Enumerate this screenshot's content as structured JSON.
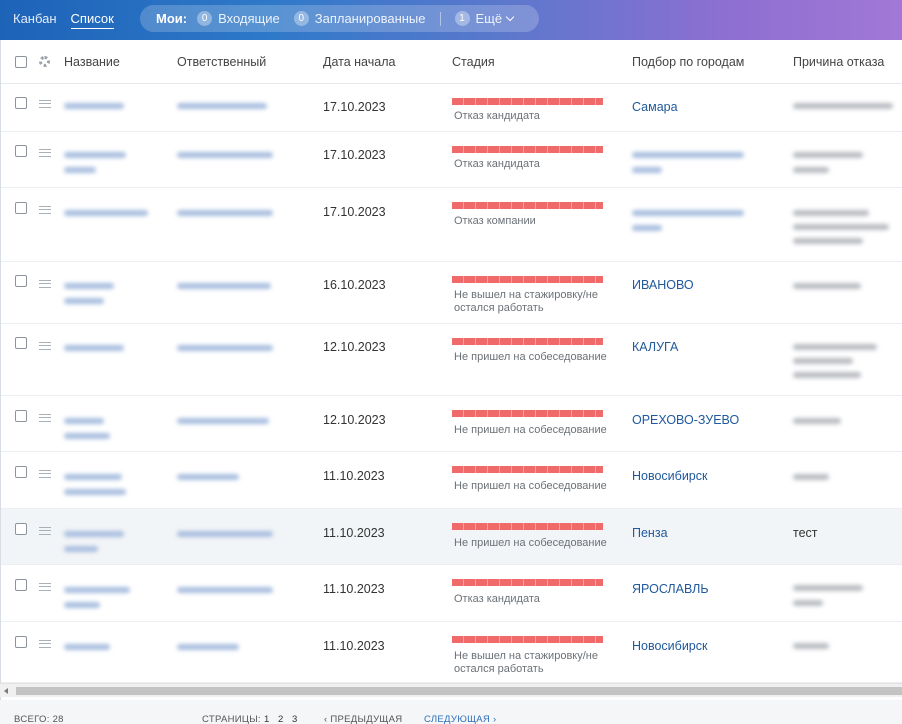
{
  "topbar": {
    "views": [
      {
        "label": "Канбан",
        "active": false
      },
      {
        "label": "Список",
        "active": true
      }
    ],
    "my_label": "Мои:",
    "counters": [
      {
        "count": "0",
        "label": "Входящие"
      },
      {
        "count": "0",
        "label": "Запланированные"
      },
      {
        "count": "1",
        "label": "Ещё"
      }
    ]
  },
  "table": {
    "columns": [
      "Название",
      "Ответственный",
      "Дата начала",
      "Стадия",
      "Подбор по городам",
      "Причина отказа"
    ],
    "rows": [
      {
        "date": "17.10.2023",
        "stage": "Отказ кандидата",
        "city": "Самара",
        "reason": ""
      },
      {
        "date": "17.10.2023",
        "stage": "Отказ кандидата",
        "city": "",
        "reason": ""
      },
      {
        "date": "17.10.2023",
        "stage": "Отказ компании",
        "city": "",
        "reason": ""
      },
      {
        "date": "16.10.2023",
        "stage": "Не вышел на стажировку/не остался работать",
        "city": "ИВАНОВО",
        "reason": ""
      },
      {
        "date": "12.10.2023",
        "stage": "Не пришел на собеседование",
        "city": "КАЛУГА",
        "reason": ""
      },
      {
        "date": "12.10.2023",
        "stage": "Не пришел на собеседование",
        "city": "ОРЕХОВО-ЗУЕВО",
        "reason": ""
      },
      {
        "date": "11.10.2023",
        "stage": "Не пришел на собеседование",
        "city": "Новосибирск",
        "reason": ""
      },
      {
        "date": "11.10.2023",
        "stage": "Не пришел на собеседование",
        "city": "Пенза",
        "reason": "тест"
      },
      {
        "date": "11.10.2023",
        "stage": "Отказ кандидата",
        "city": "ЯРОСЛАВЛЬ",
        "reason": ""
      },
      {
        "date": "11.10.2023",
        "stage": "Не вышел на стажировку/не остался работать",
        "city": "Новосибирск",
        "reason": ""
      }
    ]
  },
  "footer": {
    "total": "Всего: 28",
    "pages_label": "Страницы:",
    "pages": [
      "1",
      "2",
      "3"
    ],
    "prev": "‹ Предыдущая",
    "next": "Следующая ›"
  },
  "colors": {
    "accent": "#2f79c9",
    "stage_bar": "#f06a6a",
    "link": "#20599c"
  }
}
